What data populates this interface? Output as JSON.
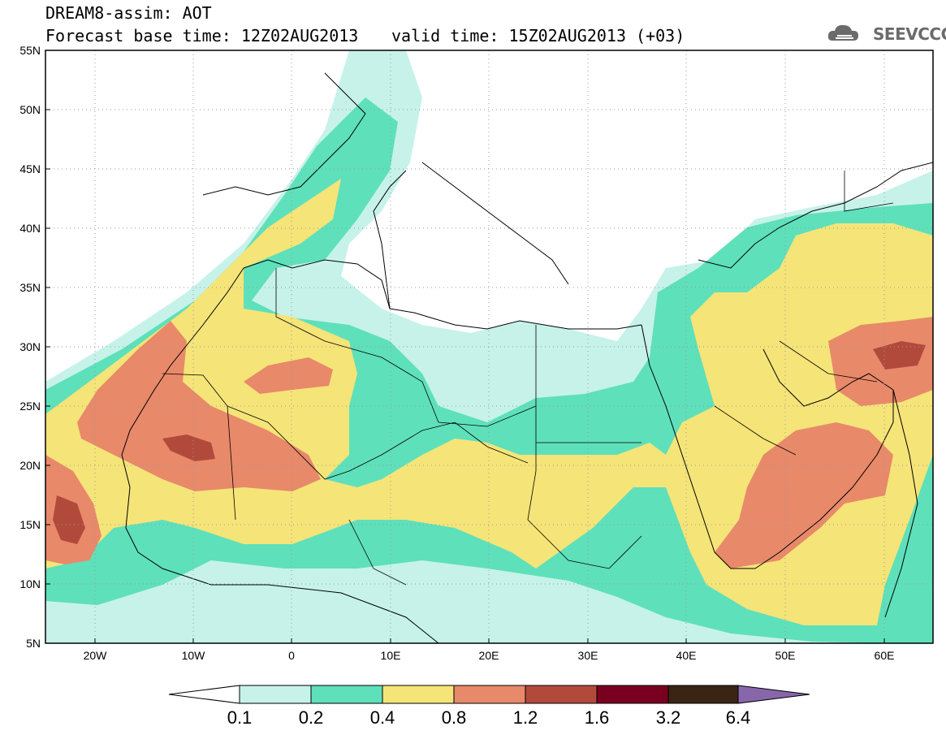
{
  "header": {
    "title": "DREAM8-assim: AOT",
    "base_time": "Forecast base time: 12Z02AUG2013",
    "valid_time": "valid time: 15Z02AUG2013 (+03)",
    "logo_text": "SEEVCCC"
  },
  "map": {
    "variable": "AOT",
    "lon_range": [
      -25,
      65
    ],
    "lat_range": [
      5,
      55
    ],
    "lat_ticks": [
      "55N",
      "50N",
      "45N",
      "40N",
      "35N",
      "30N",
      "25N",
      "20N",
      "15N",
      "10N",
      "5N"
    ],
    "lon_ticks": [
      "20W",
      "10W",
      "0",
      "10E",
      "20E",
      "30E",
      "40E",
      "50E",
      "60E"
    ]
  },
  "colorbar": {
    "labels": [
      "0.1",
      "0.2",
      "0.4",
      "0.8",
      "1.2",
      "1.6",
      "3.2",
      "6.4"
    ],
    "colors": [
      "#c6f2ea",
      "#5ee0bb",
      "#f5e478",
      "#e8896a",
      "#b24a3c",
      "#7a0020",
      "#3a2414",
      "#8866aa"
    ]
  },
  "colors": {
    "level_0_1": "#c6f2ea",
    "level_0_2": "#5ee0bb",
    "level_0_4": "#f5e478",
    "level_0_8": "#e8896a",
    "level_1_2": "#b24a3c",
    "land_outline": "#000000"
  }
}
